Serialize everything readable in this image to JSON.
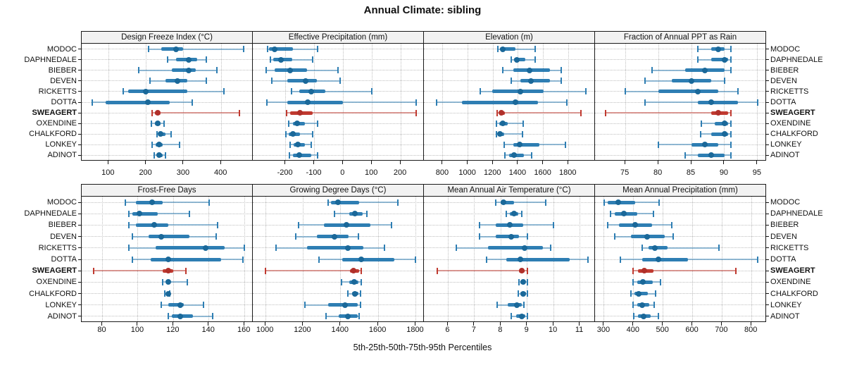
{
  "title": "Annual Climate: sibling",
  "caption": "5th-25th-50th-75th-95th Percentiles",
  "stations": [
    "MODOC",
    "DAPHNEDALE",
    "BIEBER",
    "DEVEN",
    "RICKETTS",
    "DOTTA",
    "SWEAGERT",
    "OXENDINE",
    "CHALKFORD",
    "LONKEY",
    "ADINOT"
  ],
  "highlight_station": "SWEAGERT",
  "percentiles": [
    "5th",
    "25th",
    "50th",
    "75th",
    "95th"
  ],
  "colors": {
    "blue_median": "#1a6899",
    "blue_box": "#2e7eb3",
    "blue_whisker": "rgba(46,126,179,0.5)",
    "red_median": "#b0302a",
    "red_box": "#c03a30",
    "red_whisker": "rgba(192,58,48,0.5)",
    "strip_bg": "#f2f2f2",
    "panel_border": "#1a1a1a",
    "grid": "#bfbfbf",
    "text": "#111111"
  },
  "chart_data": {
    "type": "dot-interval",
    "description": "Trellis of 8 panels (2 rows x 4 cols). Each row of a panel shows 5th-25th-50th-75th-95th percentiles for a station: thin whisker = 5th-95th, thick bar = 25th-75th, dot = median. SWEAGERT is highlighted in red/bold.",
    "layout": {
      "rows": 2,
      "cols": 4,
      "legend": "none",
      "grid": "dotted"
    },
    "panels": [
      {
        "title": "Design Freeze Index (°C)",
        "ticks": [
          100,
          200,
          300,
          400
        ],
        "range": [
          28,
          486
        ],
        "values": [
          [
            207,
            241,
            279,
            298,
            460
          ],
          [
            257,
            279,
            313,
            335,
            361
          ],
          [
            180,
            269,
            314,
            332,
            388
          ],
          [
            210,
            251,
            284,
            310,
            361
          ],
          [
            138,
            151,
            198,
            310,
            407
          ],
          [
            57,
            91,
            204,
            263,
            323
          ],
          [
            216,
            223,
            231,
            238,
            449
          ],
          [
            213,
            223,
            231,
            238,
            248
          ],
          [
            229,
            235,
            239,
            251,
            266
          ],
          [
            216,
            226,
            234,
            244,
            289
          ],
          [
            221,
            229,
            235,
            244,
            251
          ]
        ]
      },
      {
        "title": "Effective Precipitation (mm)",
        "ticks": [
          -200,
          -100,
          0,
          100,
          200
        ],
        "range": [
          -314,
          283
        ],
        "values": [
          [
            -262,
            -258,
            -238,
            -174,
            -88
          ],
          [
            -252,
            -243,
            -215,
            -178,
            -107
          ],
          [
            -268,
            -239,
            -184,
            -125,
            -18
          ],
          [
            -249,
            -194,
            -131,
            -92,
            -11
          ],
          [
            -180,
            -153,
            -110,
            -63,
            100
          ],
          [
            -266,
            -194,
            -122,
            -2,
            253
          ],
          [
            -197,
            -184,
            -151,
            -107,
            253
          ],
          [
            -189,
            -174,
            -160,
            -133,
            -88
          ],
          [
            -198,
            -189,
            -175,
            -149,
            -107
          ],
          [
            -184,
            -172,
            -157,
            -134,
            -110
          ],
          [
            -186,
            -174,
            -153,
            -112,
            -89
          ]
        ]
      },
      {
        "title": "Elevation (m)",
        "ticks": [
          800,
          1000,
          1200,
          1400,
          1600,
          1800
        ],
        "range": [
          649,
          2017
        ],
        "values": [
          [
            1240,
            1255,
            1277,
            1380,
            1535
          ],
          [
            1346,
            1365,
            1390,
            1455,
            1533
          ],
          [
            1277,
            1361,
            1492,
            1650,
            1740
          ],
          [
            1342,
            1417,
            1500,
            1650,
            1744
          ],
          [
            1099,
            1193,
            1417,
            1604,
            1940
          ],
          [
            748,
            950,
            1380,
            1557,
            1785
          ],
          [
            1234,
            1250,
            1267,
            1295,
            1897
          ],
          [
            1226,
            1249,
            1277,
            1314,
            1439
          ],
          [
            1226,
            1240,
            1252,
            1290,
            1432
          ],
          [
            1290,
            1361,
            1413,
            1566,
            1776
          ],
          [
            1295,
            1330,
            1364,
            1445,
            1507
          ]
        ]
      },
      {
        "title": "Fraction of Annual PPT as Rain",
        "ticks": [
          75,
          80,
          85,
          90,
          95
        ],
        "range": [
          70.4,
          96.4
        ],
        "values": [
          [
            86,
            88,
            89,
            90,
            91
          ],
          [
            86,
            88,
            90,
            90.5,
            91
          ],
          [
            79,
            84,
            87,
            90,
            91
          ],
          [
            78,
            82,
            85,
            88,
            90
          ],
          [
            75,
            80,
            86,
            89,
            92
          ],
          [
            78,
            86,
            88,
            92,
            95
          ],
          [
            72,
            88,
            89,
            90.5,
            91
          ],
          [
            86.5,
            88.5,
            90,
            90.5,
            91
          ],
          [
            86.4,
            88,
            90,
            90.5,
            91
          ],
          [
            80,
            85,
            87,
            89,
            91
          ],
          [
            84,
            86,
            88,
            90,
            91
          ]
        ]
      },
      {
        "title": "Frost-Free Days",
        "ticks": [
          80,
          100,
          120,
          140,
          160
        ],
        "range": [
          68.3,
          165.1
        ],
        "values": [
          [
            93,
            99,
            108,
            114,
            140
          ],
          [
            95,
            97,
            101,
            111,
            129
          ],
          [
            95,
            99,
            109,
            117,
            145
          ],
          [
            97,
            106,
            113,
            129,
            144
          ],
          [
            95,
            110,
            138,
            149,
            160
          ],
          [
            97,
            107,
            117,
            147,
            159
          ],
          [
            75,
            114,
            117,
            120,
            127
          ],
          [
            114,
            116,
            117,
            118,
            128
          ],
          [
            115,
            116,
            117,
            117.5,
            118
          ],
          [
            113,
            117,
            124,
            126,
            137
          ],
          [
            117,
            119,
            124,
            131,
            142
          ]
        ]
      },
      {
        "title": "Growing Degree Days (°C)",
        "ticks": [
          1000,
          1200,
          1400,
          1600,
          1800
        ],
        "range": [
          932,
          1847
        ],
        "values": [
          [
            1335,
            1347,
            1385,
            1500,
            1705
          ],
          [
            1366,
            1447,
            1475,
            1516,
            1541
          ],
          [
            1175,
            1310,
            1430,
            1560,
            1670
          ],
          [
            1159,
            1272,
            1366,
            1441,
            1495
          ],
          [
            1056,
            1222,
            1440,
            1522,
            1635
          ],
          [
            1284,
            1410,
            1510,
            1685,
            1798
          ],
          [
            1000,
            1450,
            1470,
            1500,
            1510
          ],
          [
            1404,
            1447,
            1472,
            1495,
            1510
          ],
          [
            1440,
            1460,
            1476,
            1495,
            1505
          ],
          [
            1209,
            1335,
            1422,
            1491,
            1504
          ],
          [
            1322,
            1391,
            1439,
            1491,
            1500
          ]
        ]
      },
      {
        "title": "Mean Annual Air Temperature (°C)",
        "ticks": [
          6,
          7,
          8,
          9,
          10,
          11
        ],
        "range": [
          5.08,
          11.6
        ],
        "values": [
          [
            7.8,
            8.0,
            8.1,
            8.5,
            9.7
          ],
          [
            8.2,
            8.35,
            8.5,
            8.65,
            8.8
          ],
          [
            7.2,
            7.8,
            8.35,
            8.85,
            10.0
          ],
          [
            7.2,
            7.8,
            8.4,
            8.7,
            9.0
          ],
          [
            6.3,
            7.5,
            8.9,
            9.6,
            9.9
          ],
          [
            7.45,
            8.2,
            8.75,
            10.6,
            11.3
          ],
          [
            5.6,
            8.7,
            8.8,
            8.9,
            9.0
          ],
          [
            8.7,
            8.75,
            8.85,
            8.92,
            9.0
          ],
          [
            8.65,
            8.75,
            8.86,
            8.95,
            9.0
          ],
          [
            7.85,
            8.25,
            8.6,
            8.8,
            8.87
          ],
          [
            8.4,
            8.57,
            8.8,
            8.93,
            9.0
          ]
        ]
      },
      {
        "title": "Mean Annual Precipitation (mm)",
        "ticks": [
          300,
          400,
          500,
          600,
          700,
          800
        ],
        "range": [
          269,
          852
        ],
        "values": [
          [
            300,
            312,
            348,
            405,
            486
          ],
          [
            322,
            335,
            368,
            412,
            467
          ],
          [
            312,
            350,
            405,
            462,
            529
          ],
          [
            335,
            392,
            445,
            505,
            535
          ],
          [
            430,
            450,
            472,
            515,
            690
          ],
          [
            355,
            430,
            485,
            585,
            820
          ],
          [
            398,
            415,
            437,
            468,
            748
          ],
          [
            398,
            412,
            432,
            465,
            492
          ],
          [
            390,
            402,
            418,
            448,
            475
          ],
          [
            398,
            412,
            430,
            452,
            470
          ],
          [
            400,
            415,
            433,
            458,
            485
          ]
        ]
      }
    ]
  }
}
